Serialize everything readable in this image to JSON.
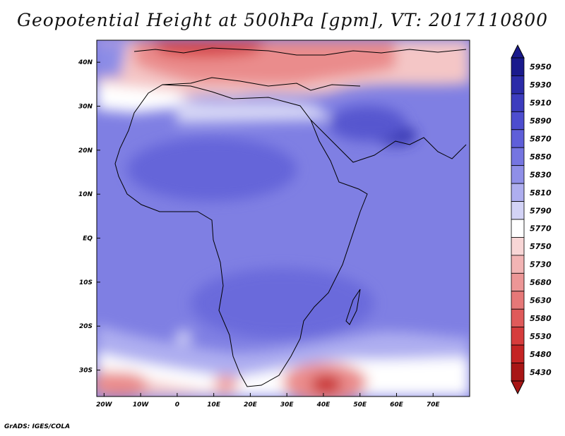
{
  "title": "Geopotential Height at 500hPa [gpm], VT: 2017110800",
  "footer": "GrADS: IGES/COLA",
  "map": {
    "lon_range": [
      -22,
      80
    ],
    "lat_range": [
      -36,
      45
    ],
    "lon_ticks": [
      "20W",
      "10W",
      "0",
      "10E",
      "20E",
      "30E",
      "40E",
      "50E",
      "60E",
      "70E"
    ],
    "lat_ticks": [
      "40N",
      "30N",
      "20N",
      "10N",
      "EQ",
      "10S",
      "20S",
      "30S"
    ]
  },
  "colorbar": {
    "labels": [
      "5950",
      "5930",
      "5910",
      "5890",
      "5870",
      "5850",
      "5830",
      "5810",
      "5790",
      "5770",
      "5750",
      "5730",
      "5680",
      "5630",
      "5580",
      "5530",
      "5480",
      "5430"
    ],
    "colors": [
      "#1a1a8c",
      "#2b2ba8",
      "#3c3cbe",
      "#4d4dcf",
      "#5f5fd9",
      "#7575e1",
      "#8f8fe8",
      "#aeaeef",
      "#d3d3f6",
      "#ffffff",
      "#f8d6d6",
      "#f2b4b4",
      "#ec9696",
      "#e67878",
      "#df5a5a",
      "#d63c3c",
      "#c42424",
      "#a81616"
    ]
  }
}
